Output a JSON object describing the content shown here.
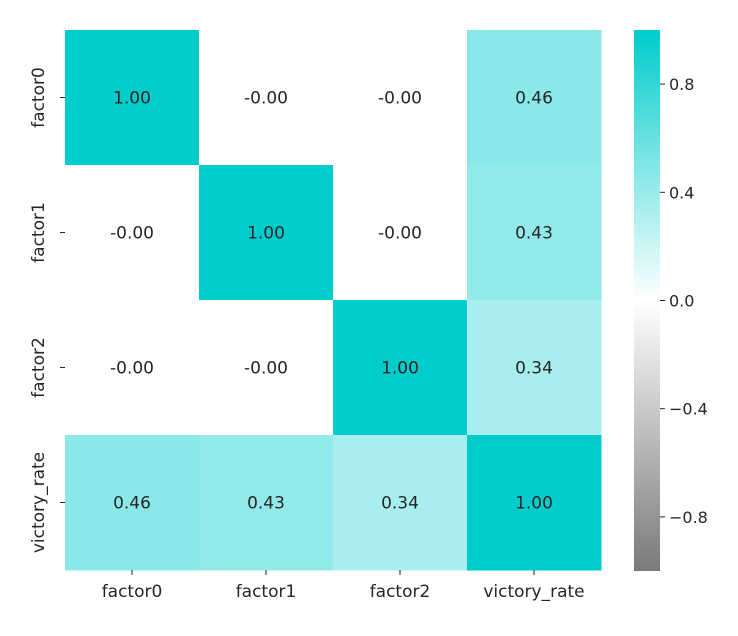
{
  "chart_data": {
    "type": "heatmap",
    "title": "",
    "xlabel": "",
    "ylabel": "",
    "rows": [
      "factor0",
      "factor1",
      "factor2",
      "victory_rate"
    ],
    "columns": [
      "factor0",
      "factor1",
      "factor2",
      "victory_rate"
    ],
    "values": [
      [
        1.0,
        -0.0,
        -0.0,
        0.46
      ],
      [
        -0.0,
        1.0,
        -0.0,
        0.43
      ],
      [
        -0.0,
        -0.0,
        1.0,
        0.34
      ],
      [
        0.46,
        0.43,
        0.34,
        1.0
      ]
    ],
    "labels": [
      [
        "1.00",
        "-0.00",
        "-0.00",
        "0.46"
      ],
      [
        "-0.00",
        "1.00",
        "-0.00",
        "0.43"
      ],
      [
        "-0.00",
        "-0.00",
        "1.00",
        "0.34"
      ],
      [
        "0.46",
        "0.43",
        "0.34",
        "1.00"
      ]
    ],
    "colorbar": {
      "range": [
        -1,
        1
      ],
      "ticks": [
        0.8,
        0.4,
        0.0,
        -0.4,
        -0.8
      ],
      "tick_labels": [
        "0.8",
        "0.4",
        "0.0",
        "−0.4",
        "−0.8"
      ],
      "colors": {
        "high": "#00cccc",
        "mid": "#ffffff",
        "low": "#7a7a7a"
      }
    },
    "grid": false
  }
}
